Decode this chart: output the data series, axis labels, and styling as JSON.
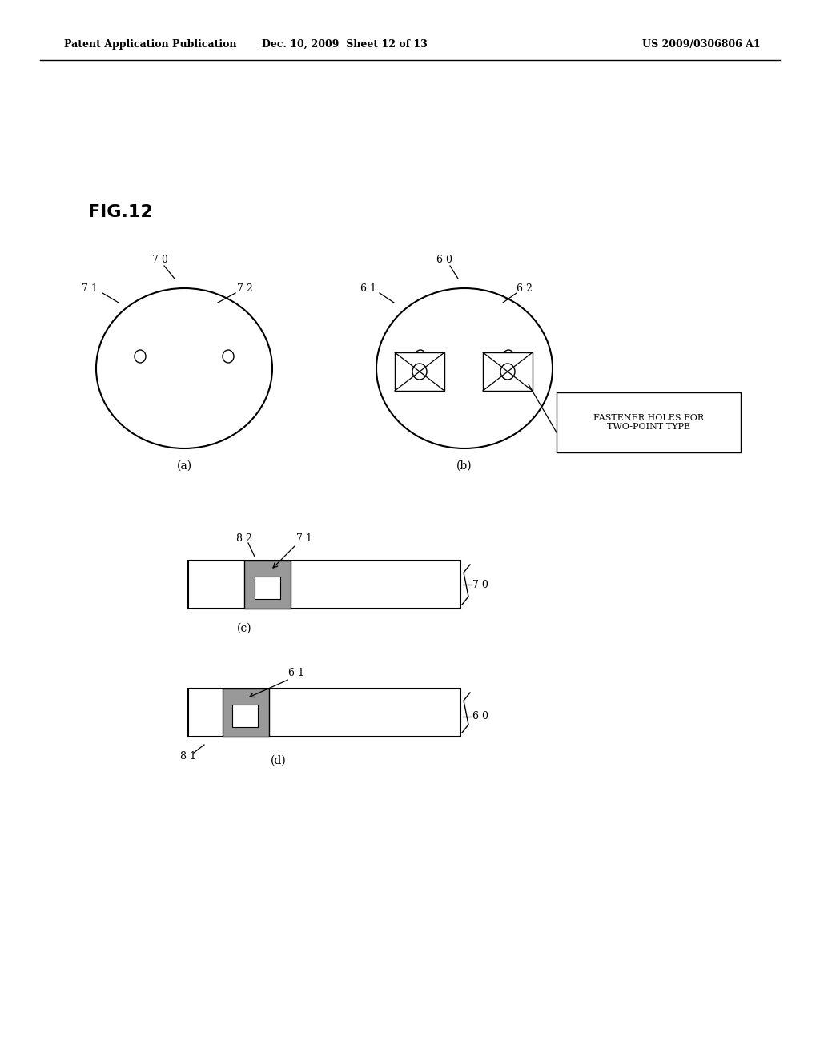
{
  "bg_color": "#ffffff",
  "header_left": "Patent Application Publication",
  "header_mid": "Dec. 10, 2009  Sheet 12 of 13",
  "header_right": "US 2009/0306806 A1",
  "fig_label": "FIG.12"
}
